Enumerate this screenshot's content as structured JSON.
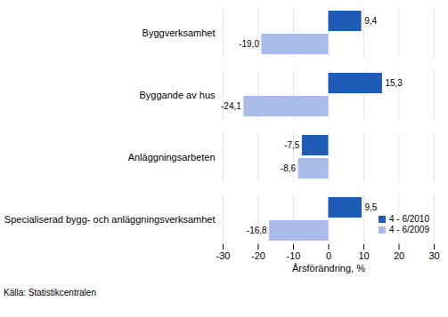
{
  "chart_data": {
    "type": "bar",
    "orientation": "horizontal",
    "categories": [
      "Byggverksamhet",
      "Byggande av hus",
      "Anläggningsarbeten",
      "Specialiserad bygg- och anläggningsverksamhet"
    ],
    "series": [
      {
        "name": "4 - 6/2010",
        "color": "#1f5cb8",
        "values": [
          9.4,
          15.3,
          -7.5,
          9.5
        ],
        "value_labels": [
          "9,4",
          "15,3",
          "-7,5",
          "9,5"
        ]
      },
      {
        "name": "4 - 6/2009",
        "color": "#a9bbe8",
        "values": [
          -19.0,
          -24.1,
          -8.6,
          -16.8
        ],
        "value_labels": [
          "-19,0",
          "-24,1",
          "-8,6",
          "-16,8"
        ]
      }
    ],
    "x_label": "Årsförändring, %",
    "xlim": [
      -30,
      30
    ],
    "xticks": [
      -30,
      -20,
      -10,
      0,
      10,
      20,
      30
    ],
    "grid": true,
    "legend": "lower right",
    "data_labels": true,
    "caption": "Källa: Statistikcentralen"
  }
}
